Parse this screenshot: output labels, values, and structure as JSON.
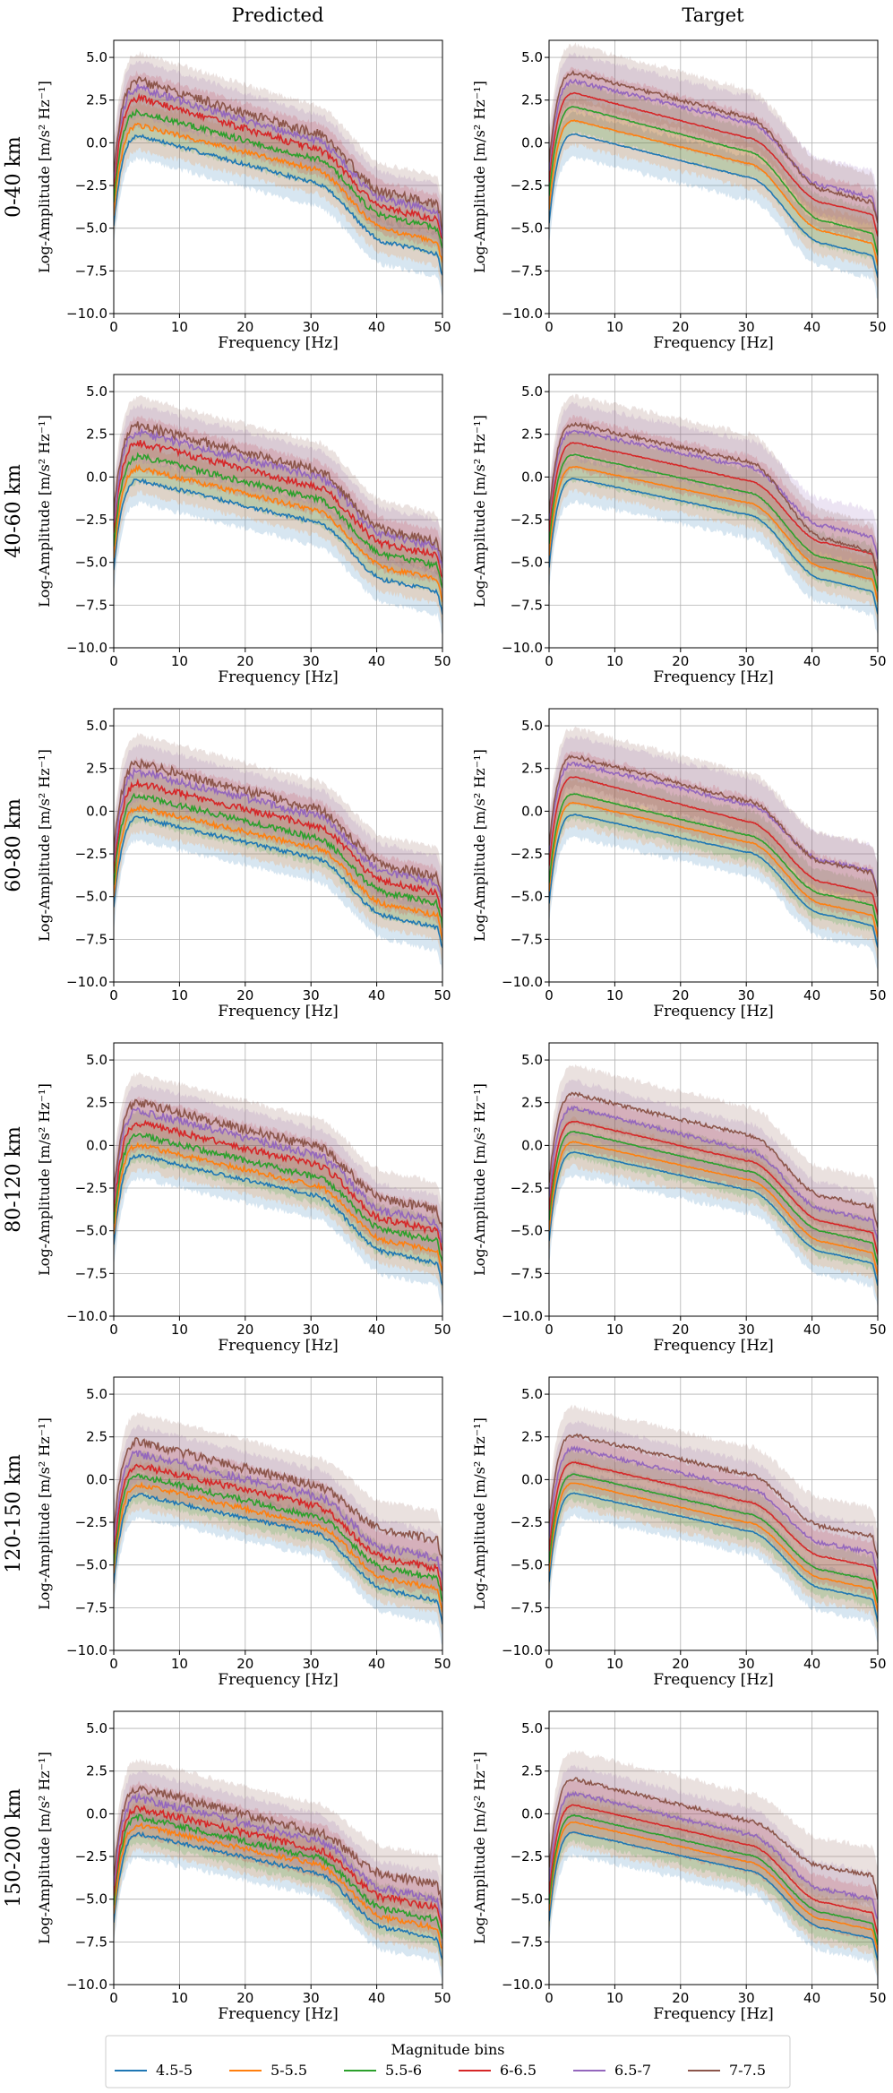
{
  "figure": {
    "column_titles": [
      "Predicted",
      "Target"
    ],
    "row_labels": [
      "0-40 km",
      "40-60 km",
      "60-80 km",
      "80-120 km",
      "120-150 km",
      "150-200 km"
    ]
  },
  "chart_data": {
    "type": "line",
    "panels_layout": "6 rows x 2 columns grid of line plots with shaded uncertainty bands",
    "xlabel": "Frequency [Hz]",
    "ylabel_text": "Log-Amplitude [m/s² Hz⁻¹]",
    "xlim": [
      0,
      50
    ],
    "ylim": [
      -10,
      6
    ],
    "x_ticks": [
      0,
      10,
      20,
      30,
      40,
      50
    ],
    "y_ticks": [
      -10.0,
      -7.5,
      -5.0,
      -2.5,
      0.0,
      2.5,
      5.0
    ],
    "y_tick_labels": [
      "−10.0",
      "−7.5",
      "−5.0",
      "−2.5",
      "0.0",
      "2.5",
      "5.0"
    ],
    "grid": true,
    "legend": {
      "title": "Magnitude bins",
      "placement": "bottom-center",
      "entries": [
        "4.5-5",
        "5-5.5",
        "5.5-6",
        "6-6.5",
        "6.5-7",
        "7-7.5"
      ]
    },
    "series_colors": [
      "#1f77b4",
      "#ff7f0e",
      "#2ca02c",
      "#d62728",
      "#9467bd",
      "#8c564b"
    ],
    "panels": [
      {
        "row": "0-40 km",
        "column": "Predicted",
        "series": [
          {
            "name": "4.5-5",
            "peak": 0.4,
            "mid": -2.3,
            "end": -6.5
          },
          {
            "name": "5-5.5",
            "peak": 1.0,
            "mid": -1.5,
            "end": -5.8
          },
          {
            "name": "5.5-6",
            "peak": 1.8,
            "mid": -0.9,
            "end": -5.0
          },
          {
            "name": "6-6.5",
            "peak": 2.6,
            "mid": -0.3,
            "end": -4.5
          },
          {
            "name": "6.5-7",
            "peak": 3.2,
            "mid": 0.2,
            "end": -4.0
          },
          {
            "name": "7-7.5",
            "peak": 3.6,
            "mid": 0.6,
            "end": -3.6
          }
        ]
      },
      {
        "row": "0-40 km",
        "column": "Target",
        "series": [
          {
            "name": "4.5-5",
            "peak": 0.5,
            "mid": -2.0,
            "end": -6.6
          },
          {
            "name": "5-5.5",
            "peak": 1.3,
            "mid": -1.2,
            "end": -5.9
          },
          {
            "name": "5.5-6",
            "peak": 2.1,
            "mid": -0.5,
            "end": -5.3
          },
          {
            "name": "6-6.5",
            "peak": 2.9,
            "mid": 0.3,
            "end": -4.2
          },
          {
            "name": "6.5-7",
            "peak": 3.6,
            "mid": 1.2,
            "end": -3.2
          },
          {
            "name": "7-7.5",
            "peak": 4.1,
            "mid": 1.5,
            "end": -3.5
          }
        ]
      },
      {
        "row": "40-60 km",
        "column": "Predicted",
        "series": [
          {
            "name": "4.5-5",
            "peak": -0.2,
            "mid": -2.6,
            "end": -6.7
          },
          {
            "name": "5-5.5",
            "peak": 0.5,
            "mid": -1.9,
            "end": -6.0
          },
          {
            "name": "5.5-6",
            "peak": 1.2,
            "mid": -1.2,
            "end": -5.2
          },
          {
            "name": "6-6.5",
            "peak": 2.0,
            "mid": -0.5,
            "end": -4.6
          },
          {
            "name": "6.5-7",
            "peak": 2.6,
            "mid": 0.1,
            "end": -4.1
          },
          {
            "name": "7-7.5",
            "peak": 3.0,
            "mid": 0.5,
            "end": -3.8
          }
        ]
      },
      {
        "row": "40-60 km",
        "column": "Target",
        "series": [
          {
            "name": "4.5-5",
            "peak": -0.1,
            "mid": -2.2,
            "end": -6.7
          },
          {
            "name": "5-5.5",
            "peak": 0.6,
            "mid": -1.5,
            "end": -6.0
          },
          {
            "name": "5.5-6",
            "peak": 1.3,
            "mid": -0.9,
            "end": -5.4
          },
          {
            "name": "6-6.5",
            "peak": 2.0,
            "mid": -0.2,
            "end": -4.5
          },
          {
            "name": "6.5-7",
            "peak": 2.7,
            "mid": 0.6,
            "end": -3.5
          },
          {
            "name": "7-7.5",
            "peak": 3.1,
            "mid": 0.9,
            "end": -4.4
          }
        ]
      },
      {
        "row": "60-80 km",
        "column": "Predicted",
        "series": [
          {
            "name": "4.5-5",
            "peak": -0.4,
            "mid": -2.7,
            "end": -6.8
          },
          {
            "name": "5-5.5",
            "peak": 0.2,
            "mid": -2.1,
            "end": -6.1
          },
          {
            "name": "5.5-6",
            "peak": 0.9,
            "mid": -1.5,
            "end": -5.4
          },
          {
            "name": "6-6.5",
            "peak": 1.6,
            "mid": -0.8,
            "end": -4.8
          },
          {
            "name": "6.5-7",
            "peak": 2.3,
            "mid": -0.2,
            "end": -4.2
          },
          {
            "name": "7-7.5",
            "peak": 2.8,
            "mid": 0.2,
            "end": -3.8
          }
        ]
      },
      {
        "row": "60-80 km",
        "column": "Target",
        "series": [
          {
            "name": "4.5-5",
            "peak": -0.2,
            "mid": -2.4,
            "end": -6.7
          },
          {
            "name": "5-5.5",
            "peak": 0.5,
            "mid": -1.8,
            "end": -6.1
          },
          {
            "name": "5.5-6",
            "peak": 1.0,
            "mid": -1.4,
            "end": -5.5
          },
          {
            "name": "6-6.5",
            "peak": 2.0,
            "mid": -0.6,
            "end": -4.8
          },
          {
            "name": "6.5-7",
            "peak": 2.8,
            "mid": 0.4,
            "end": -3.5
          },
          {
            "name": "7-7.5",
            "peak": 3.2,
            "mid": 0.6,
            "end": -3.6
          }
        ]
      },
      {
        "row": "80-120 km",
        "column": "Predicted",
        "series": [
          {
            "name": "4.5-5",
            "peak": -0.6,
            "mid": -2.9,
            "end": -6.9
          },
          {
            "name": "5-5.5",
            "peak": 0.0,
            "mid": -2.3,
            "end": -6.2
          },
          {
            "name": "5.5-6",
            "peak": 0.6,
            "mid": -1.8,
            "end": -5.6
          },
          {
            "name": "6-6.5",
            "peak": 1.3,
            "mid": -1.1,
            "end": -5.0
          },
          {
            "name": "6.5-7",
            "peak": 2.0,
            "mid": -0.5,
            "end": -4.5
          },
          {
            "name": "7-7.5",
            "peak": 2.5,
            "mid": 0.0,
            "end": -3.8
          }
        ]
      },
      {
        "row": "80-120 km",
        "column": "Target",
        "series": [
          {
            "name": "4.5-5",
            "peak": -0.4,
            "mid": -2.6,
            "end": -6.9
          },
          {
            "name": "5-5.5",
            "peak": 0.2,
            "mid": -2.0,
            "end": -6.3
          },
          {
            "name": "5.5-6",
            "peak": 0.8,
            "mid": -1.5,
            "end": -5.7
          },
          {
            "name": "6-6.5",
            "peak": 1.4,
            "mid": -0.9,
            "end": -5.1
          },
          {
            "name": "6.5-7",
            "peak": 2.2,
            "mid": -0.3,
            "end": -4.4
          },
          {
            "name": "7-7.5",
            "peak": 3.0,
            "mid": 0.6,
            "end": -3.6
          }
        ]
      },
      {
        "row": "120-150 km",
        "column": "Predicted",
        "series": [
          {
            "name": "4.5-5",
            "peak": -0.9,
            "mid": -3.1,
            "end": -7.1
          },
          {
            "name": "5-5.5",
            "peak": -0.3,
            "mid": -2.6,
            "end": -6.4
          },
          {
            "name": "5.5-6",
            "peak": 0.2,
            "mid": -2.1,
            "end": -5.8
          },
          {
            "name": "6-6.5",
            "peak": 0.8,
            "mid": -1.5,
            "end": -5.2
          },
          {
            "name": "6.5-7",
            "peak": 1.5,
            "mid": -0.9,
            "end": -4.6
          },
          {
            "name": "7-7.5",
            "peak": 2.2,
            "mid": -0.3,
            "end": -3.5
          }
        ]
      },
      {
        "row": "120-150 km",
        "column": "Target",
        "series": [
          {
            "name": "4.5-5",
            "peak": -0.8,
            "mid": -3.0,
            "end": -7.0
          },
          {
            "name": "5-5.5",
            "peak": -0.2,
            "mid": -2.5,
            "end": -6.4
          },
          {
            "name": "5.5-6",
            "peak": 0.3,
            "mid": -2.0,
            "end": -5.9
          },
          {
            "name": "6-6.5",
            "peak": 1.0,
            "mid": -1.3,
            "end": -5.1
          },
          {
            "name": "6.5-7",
            "peak": 1.8,
            "mid": -0.5,
            "end": -4.3
          },
          {
            "name": "7-7.5",
            "peak": 2.6,
            "mid": 0.3,
            "end": -3.3
          }
        ]
      },
      {
        "row": "150-200 km",
        "column": "Predicted",
        "series": [
          {
            "name": "4.5-5",
            "peak": -1.2,
            "mid": -3.4,
            "end": -7.3
          },
          {
            "name": "5-5.5",
            "peak": -0.7,
            "mid": -2.9,
            "end": -6.7
          },
          {
            "name": "5.5-6",
            "peak": -0.2,
            "mid": -2.5,
            "end": -6.2
          },
          {
            "name": "6-6.5",
            "peak": 0.3,
            "mid": -2.0,
            "end": -5.5
          },
          {
            "name": "6.5-7",
            "peak": 0.9,
            "mid": -1.5,
            "end": -5.0
          },
          {
            "name": "7-7.5",
            "peak": 1.5,
            "mid": -1.0,
            "end": -4.1
          }
        ]
      },
      {
        "row": "150-200 km",
        "column": "Target",
        "series": [
          {
            "name": "4.5-5",
            "peak": -1.1,
            "mid": -3.3,
            "end": -7.3
          },
          {
            "name": "5-5.5",
            "peak": -0.5,
            "mid": -2.8,
            "end": -6.8
          },
          {
            "name": "5.5-6",
            "peak": -0.1,
            "mid": -2.4,
            "end": -6.4
          },
          {
            "name": "6-6.5",
            "peak": 0.5,
            "mid": -1.8,
            "end": -5.8
          },
          {
            "name": "6.5-7",
            "peak": 1.2,
            "mid": -1.2,
            "end": -5.0
          },
          {
            "name": "7-7.5",
            "peak": 2.0,
            "mid": -0.4,
            "end": -3.6
          }
        ]
      }
    ]
  }
}
